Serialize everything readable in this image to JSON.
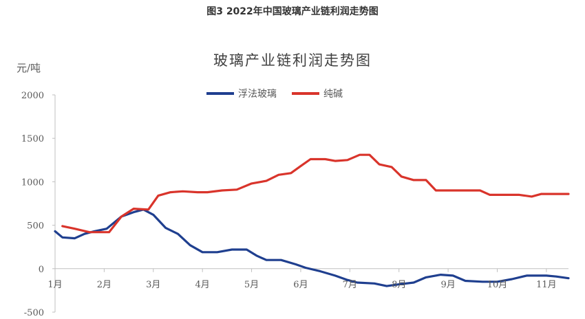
{
  "figure_caption": "图3 2022年中国玻璃产业链利润走势图",
  "colors": {
    "float_glass": "#1f3f8f",
    "soda_ash": "#d9342b",
    "axis": "#bfbfbf"
  },
  "chart_data": {
    "type": "line",
    "title": "玻璃产业链利润走势图",
    "ylabel": "元/吨",
    "xlabel": "",
    "ylim": [
      -500,
      2000
    ],
    "yticks": [
      -500,
      0,
      500,
      1000,
      1500,
      2000
    ],
    "xlim": [
      1,
      11.45
    ],
    "xticks": [
      1,
      2,
      3,
      4,
      5,
      6,
      7,
      8,
      9,
      10,
      11
    ],
    "xtick_labels": [
      "1月",
      "2月",
      "3月",
      "4月",
      "5月",
      "6月",
      "7月",
      "8月",
      "9月",
      "10月",
      "11月"
    ],
    "grid": false,
    "legend_position": "top",
    "series": [
      {
        "name": "浮法玻璃",
        "points": [
          [
            1.0,
            430
          ],
          [
            1.15,
            360
          ],
          [
            1.4,
            350
          ],
          [
            1.6,
            400
          ],
          [
            1.8,
            430
          ],
          [
            2.05,
            460
          ],
          [
            2.35,
            600
          ],
          [
            2.6,
            650
          ],
          [
            2.8,
            680
          ],
          [
            3.0,
            620
          ],
          [
            3.25,
            470
          ],
          [
            3.5,
            400
          ],
          [
            3.75,
            270
          ],
          [
            4.0,
            190
          ],
          [
            4.3,
            190
          ],
          [
            4.6,
            220
          ],
          [
            4.9,
            220
          ],
          [
            5.1,
            150
          ],
          [
            5.3,
            100
          ],
          [
            5.6,
            100
          ],
          [
            5.9,
            50
          ],
          [
            6.1,
            10
          ],
          [
            6.4,
            -30
          ],
          [
            6.7,
            -80
          ],
          [
            6.95,
            -130
          ],
          [
            7.15,
            -160
          ],
          [
            7.5,
            -170
          ],
          [
            7.75,
            -200
          ],
          [
            8.0,
            -180
          ],
          [
            8.3,
            -160
          ],
          [
            8.55,
            -100
          ],
          [
            8.85,
            -70
          ],
          [
            9.1,
            -80
          ],
          [
            9.35,
            -140
          ],
          [
            9.7,
            -150
          ],
          [
            10.0,
            -150
          ],
          [
            10.3,
            -120
          ],
          [
            10.6,
            -80
          ],
          [
            11.0,
            -80
          ],
          [
            11.2,
            -90
          ],
          [
            11.45,
            -110
          ]
        ]
      },
      {
        "name": "纯碱",
        "points": [
          [
            1.15,
            490
          ],
          [
            1.4,
            460
          ],
          [
            1.7,
            420
          ],
          [
            2.1,
            420
          ],
          [
            2.35,
            600
          ],
          [
            2.6,
            690
          ],
          [
            2.9,
            680
          ],
          [
            3.1,
            840
          ],
          [
            3.35,
            880
          ],
          [
            3.6,
            890
          ],
          [
            3.9,
            880
          ],
          [
            4.1,
            880
          ],
          [
            4.4,
            900
          ],
          [
            4.7,
            910
          ],
          [
            5.0,
            980
          ],
          [
            5.3,
            1010
          ],
          [
            5.55,
            1080
          ],
          [
            5.8,
            1100
          ],
          [
            6.0,
            1180
          ],
          [
            6.2,
            1260
          ],
          [
            6.5,
            1260
          ],
          [
            6.7,
            1240
          ],
          [
            6.95,
            1250
          ],
          [
            7.2,
            1310
          ],
          [
            7.4,
            1310
          ],
          [
            7.6,
            1200
          ],
          [
            7.85,
            1170
          ],
          [
            8.05,
            1060
          ],
          [
            8.3,
            1020
          ],
          [
            8.55,
            1020
          ],
          [
            8.75,
            900
          ],
          [
            9.1,
            900
          ],
          [
            9.4,
            900
          ],
          [
            9.65,
            900
          ],
          [
            9.85,
            850
          ],
          [
            10.2,
            850
          ],
          [
            10.45,
            850
          ],
          [
            10.7,
            830
          ],
          [
            10.9,
            860
          ],
          [
            11.2,
            860
          ],
          [
            11.45,
            860
          ]
        ]
      }
    ]
  }
}
